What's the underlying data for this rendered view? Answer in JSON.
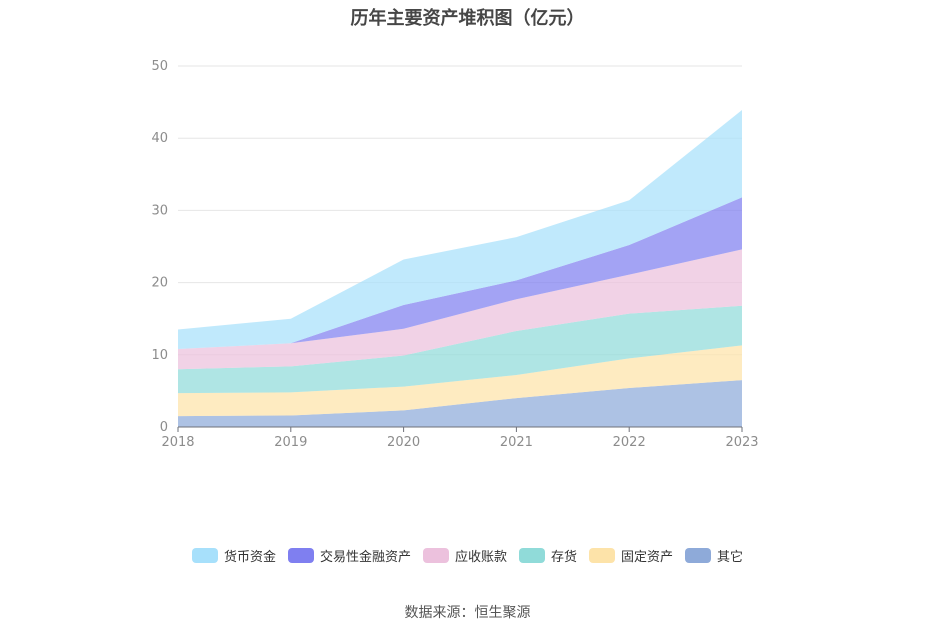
{
  "chart_data": {
    "type": "area",
    "stacked": true,
    "title": "历年主要资产堆积图（亿元）",
    "x": [
      "2018",
      "2019",
      "2020",
      "2021",
      "2022",
      "2023"
    ],
    "ylim": [
      0,
      50
    ],
    "yticks": [
      0,
      10,
      20,
      30,
      40,
      50
    ],
    "grid": true,
    "legend_position": "bottom",
    "series": [
      {
        "name": "其它",
        "color": "#8eaad9",
        "values": [
          1.5,
          1.6,
          2.3,
          4.0,
          5.4,
          6.5
        ]
      },
      {
        "name": "固定资产",
        "color": "#fde3a9",
        "values": [
          3.2,
          3.2,
          3.3,
          3.2,
          4.1,
          4.8
        ]
      },
      {
        "name": "存货",
        "color": "#90dbd9",
        "values": [
          3.3,
          3.6,
          4.3,
          6.1,
          6.2,
          5.5
        ]
      },
      {
        "name": "应收账款",
        "color": "#ecc1dd",
        "values": [
          2.8,
          3.2,
          3.7,
          4.4,
          5.4,
          7.8
        ]
      },
      {
        "name": "交易性金融资产",
        "color": "#7f7ff0",
        "values": [
          0.0,
          0.0,
          3.3,
          2.6,
          4.1,
          7.2
        ]
      },
      {
        "name": "货币资金",
        "color": "#a7e0fb",
        "values": [
          2.7,
          3.4,
          6.3,
          6.0,
          6.2,
          12.1
        ]
      }
    ],
    "source": "数据来源：恒生聚源"
  },
  "legend_order": [
    "货币资金",
    "交易性金融资产",
    "应收账款",
    "存货",
    "固定资产",
    "其它"
  ]
}
